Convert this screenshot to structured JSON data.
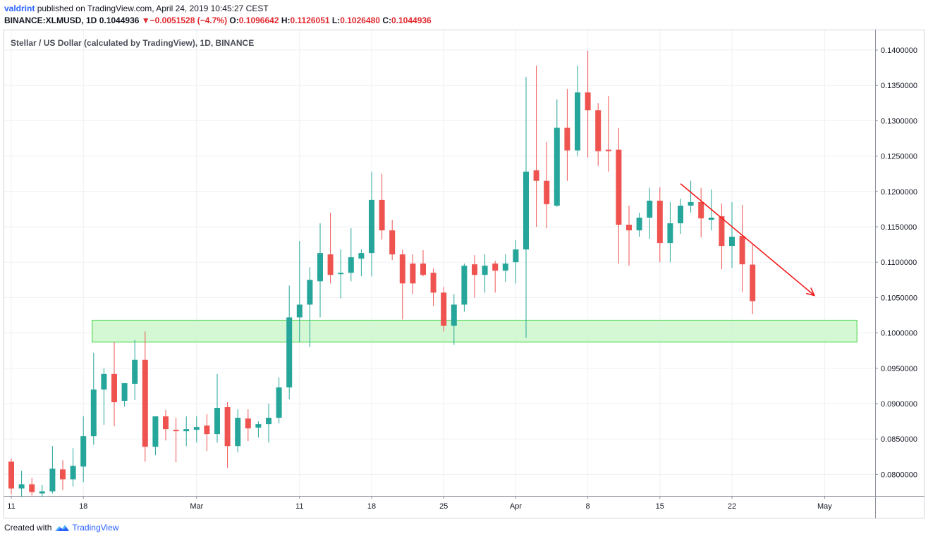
{
  "header": {
    "author": "valdrint",
    "published_text": "published on TradingView.com, April 24, 2019 10:45:27 CEST",
    "symbol_line": "BINANCE:XLMUSD, 1D",
    "last": "0.1044936",
    "change": "−0.0051528 (−4.7%)",
    "o_label": "O:",
    "o": "0.1096642",
    "h_label": "H:",
    "h": "0.1126051",
    "l_label": "L:",
    "l": "0.1026480",
    "c_label": "C:",
    "c": "0.1044936"
  },
  "footer": {
    "created_with": "Created with",
    "brand": "TradingView"
  },
  "colors": {
    "up": "#26a69a",
    "down": "#ef5350",
    "zone_fill": "#ccf7cc",
    "zone_stroke": "#39d339",
    "arrow": "#f21a1a",
    "grid": "#eef0f3"
  },
  "chart_data": {
    "type": "candlestick",
    "title": "Stellar / US Dollar (calculated by TradingView), 1D, BINANCE",
    "ylim": [
      0.0775,
      0.1414
    ],
    "y_ticks": [
      "0.1400000",
      "0.1350000",
      "0.1300000",
      "0.1250000",
      "0.1200000",
      "0.1150000",
      "0.1100000",
      "0.1050000",
      "0.1000000",
      "0.0950000",
      "0.0900000",
      "0.0850000",
      "0.0800000"
    ],
    "x_ticks": [
      {
        "label": "11",
        "day": 0
      },
      {
        "label": "18",
        "day": 7
      },
      {
        "label": "Mar",
        "day": 18
      },
      {
        "label": "11",
        "day": 28
      },
      {
        "label": "18",
        "day": 35
      },
      {
        "label": "25",
        "day": 42
      },
      {
        "label": "Apr",
        "day": 49
      },
      {
        "label": "8",
        "day": 56
      },
      {
        "label": "15",
        "day": 63
      },
      {
        "label": "22",
        "day": 70
      },
      {
        "label": "May",
        "day": 79
      }
    ],
    "candles": [
      {
        "date": "2019-02-11",
        "o": 0.0818,
        "h": 0.0822,
        "l": 0.0772,
        "c": 0.078
      },
      {
        "date": "2019-02-12",
        "o": 0.078,
        "h": 0.0805,
        "l": 0.0768,
        "c": 0.0786
      },
      {
        "date": "2019-02-13",
        "o": 0.0786,
        "h": 0.0795,
        "l": 0.077,
        "c": 0.0775
      },
      {
        "date": "2019-02-14",
        "o": 0.0773,
        "h": 0.0785,
        "l": 0.0768,
        "c": 0.0776
      },
      {
        "date": "2019-02-15",
        "o": 0.0776,
        "h": 0.084,
        "l": 0.0773,
        "c": 0.0808
      },
      {
        "date": "2019-02-16",
        "o": 0.0807,
        "h": 0.082,
        "l": 0.0778,
        "c": 0.0793
      },
      {
        "date": "2019-02-17",
        "o": 0.0793,
        "h": 0.0837,
        "l": 0.0783,
        "c": 0.0812
      },
      {
        "date": "2019-02-18",
        "o": 0.0811,
        "h": 0.0882,
        "l": 0.0789,
        "c": 0.0854
      },
      {
        "date": "2019-02-19",
        "o": 0.0854,
        "h": 0.0972,
        "l": 0.0842,
        "c": 0.092
      },
      {
        "date": "2019-02-20",
        "o": 0.092,
        "h": 0.095,
        "l": 0.087,
        "c": 0.0942
      },
      {
        "date": "2019-02-21",
        "o": 0.0942,
        "h": 0.0987,
        "l": 0.0868,
        "c": 0.0902
      },
      {
        "date": "2019-02-22",
        "o": 0.0904,
        "h": 0.0929,
        "l": 0.0896,
        "c": 0.0929
      },
      {
        "date": "2019-02-23",
        "o": 0.0928,
        "h": 0.099,
        "l": 0.0905,
        "c": 0.0962
      },
      {
        "date": "2019-02-24",
        "o": 0.0962,
        "h": 0.1002,
        "l": 0.0818,
        "c": 0.0839
      },
      {
        "date": "2019-02-25",
        "o": 0.0839,
        "h": 0.0882,
        "l": 0.0827,
        "c": 0.0882
      },
      {
        "date": "2019-02-26",
        "o": 0.0882,
        "h": 0.0891,
        "l": 0.0848,
        "c": 0.0864
      },
      {
        "date": "2019-02-27",
        "o": 0.0863,
        "h": 0.088,
        "l": 0.0817,
        "c": 0.0861
      },
      {
        "date": "2019-02-28",
        "o": 0.0861,
        "h": 0.0882,
        "l": 0.084,
        "c": 0.0864
      },
      {
        "date": "2019-03-01",
        "o": 0.0863,
        "h": 0.0882,
        "l": 0.0845,
        "c": 0.0867
      },
      {
        "date": "2019-03-02",
        "o": 0.0869,
        "h": 0.0885,
        "l": 0.0833,
        "c": 0.0857
      },
      {
        "date": "2019-03-03",
        "o": 0.0857,
        "h": 0.0942,
        "l": 0.0845,
        "c": 0.0894
      },
      {
        "date": "2019-03-04",
        "o": 0.0895,
        "h": 0.0902,
        "l": 0.0809,
        "c": 0.084
      },
      {
        "date": "2019-03-05",
        "o": 0.084,
        "h": 0.0892,
        "l": 0.0831,
        "c": 0.088
      },
      {
        "date": "2019-03-06",
        "o": 0.0879,
        "h": 0.0892,
        "l": 0.0847,
        "c": 0.0865
      },
      {
        "date": "2019-03-07",
        "o": 0.0866,
        "h": 0.0875,
        "l": 0.0852,
        "c": 0.0871
      },
      {
        "date": "2019-03-08",
        "o": 0.0871,
        "h": 0.09,
        "l": 0.0845,
        "c": 0.088
      },
      {
        "date": "2019-03-09",
        "o": 0.088,
        "h": 0.0937,
        "l": 0.0872,
        "c": 0.0923
      },
      {
        "date": "2019-03-10",
        "o": 0.0923,
        "h": 0.1067,
        "l": 0.0906,
        "c": 0.1022
      },
      {
        "date": "2019-03-11",
        "o": 0.1022,
        "h": 0.113,
        "l": 0.0987,
        "c": 0.104
      },
      {
        "date": "2019-03-12",
        "o": 0.104,
        "h": 0.1093,
        "l": 0.098,
        "c": 0.1075
      },
      {
        "date": "2019-03-13",
        "o": 0.1073,
        "h": 0.1155,
        "l": 0.1022,
        "c": 0.1113
      },
      {
        "date": "2019-03-14",
        "o": 0.1111,
        "h": 0.117,
        "l": 0.107,
        "c": 0.1082
      },
      {
        "date": "2019-03-15",
        "o": 0.1083,
        "h": 0.1118,
        "l": 0.1049,
        "c": 0.1085
      },
      {
        "date": "2019-03-16",
        "o": 0.1085,
        "h": 0.1148,
        "l": 0.1073,
        "c": 0.1107
      },
      {
        "date": "2019-03-17",
        "o": 0.1105,
        "h": 0.1118,
        "l": 0.108,
        "c": 0.1113
      },
      {
        "date": "2019-03-18",
        "o": 0.1113,
        "h": 0.1228,
        "l": 0.108,
        "c": 0.1188
      },
      {
        "date": "2019-03-19",
        "o": 0.1188,
        "h": 0.1225,
        "l": 0.1132,
        "c": 0.1145
      },
      {
        "date": "2019-03-20",
        "o": 0.1145,
        "h": 0.116,
        "l": 0.1103,
        "c": 0.1111
      },
      {
        "date": "2019-03-21",
        "o": 0.1111,
        "h": 0.1118,
        "l": 0.1019,
        "c": 0.107
      },
      {
        "date": "2019-03-22",
        "o": 0.1098,
        "h": 0.1111,
        "l": 0.1055,
        "c": 0.107
      },
      {
        "date": "2019-03-23",
        "o": 0.1098,
        "h": 0.1117,
        "l": 0.108,
        "c": 0.1082
      },
      {
        "date": "2019-03-24",
        "o": 0.1085,
        "h": 0.1091,
        "l": 0.1038,
        "c": 0.1057
      },
      {
        "date": "2019-03-25",
        "o": 0.1057,
        "h": 0.1065,
        "l": 0.1002,
        "c": 0.101
      },
      {
        "date": "2019-03-26",
        "o": 0.101,
        "h": 0.1055,
        "l": 0.0983,
        "c": 0.104
      },
      {
        "date": "2019-03-27",
        "o": 0.104,
        "h": 0.1098,
        "l": 0.103,
        "c": 0.1095
      },
      {
        "date": "2019-03-28",
        "o": 0.1097,
        "h": 0.111,
        "l": 0.105,
        "c": 0.1082
      },
      {
        "date": "2019-03-29",
        "o": 0.1082,
        "h": 0.1111,
        "l": 0.1057,
        "c": 0.1095
      },
      {
        "date": "2019-03-30",
        "o": 0.1098,
        "h": 0.1102,
        "l": 0.1057,
        "c": 0.1088
      },
      {
        "date": "2019-03-31",
        "o": 0.1088,
        "h": 0.1111,
        "l": 0.1072,
        "c": 0.1098
      },
      {
        "date": "2019-04-01",
        "o": 0.11,
        "h": 0.1131,
        "l": 0.107,
        "c": 0.1118
      },
      {
        "date": "2019-04-02",
        "o": 0.1118,
        "h": 0.1362,
        "l": 0.0993,
        "c": 0.1228
      },
      {
        "date": "2019-04-03",
        "o": 0.123,
        "h": 0.1378,
        "l": 0.115,
        "c": 0.1215
      },
      {
        "date": "2019-04-04",
        "o": 0.1215,
        "h": 0.127,
        "l": 0.1148,
        "c": 0.1182
      },
      {
        "date": "2019-04-05",
        "o": 0.118,
        "h": 0.133,
        "l": 0.1178,
        "c": 0.129
      },
      {
        "date": "2019-04-06",
        "o": 0.129,
        "h": 0.1345,
        "l": 0.1215,
        "c": 0.1258
      },
      {
        "date": "2019-04-07",
        "o": 0.1258,
        "h": 0.1378,
        "l": 0.125,
        "c": 0.134
      },
      {
        "date": "2019-04-08",
        "o": 0.134,
        "h": 0.1399,
        "l": 0.1248,
        "c": 0.1315
      },
      {
        "date": "2019-04-09",
        "o": 0.1315,
        "h": 0.1325,
        "l": 0.1236,
        "c": 0.1257
      },
      {
        "date": "2019-04-10",
        "o": 0.1259,
        "h": 0.1335,
        "l": 0.1228,
        "c": 0.1257
      },
      {
        "date": "2019-04-11",
        "o": 0.1259,
        "h": 0.129,
        "l": 0.1098,
        "c": 0.1153
      },
      {
        "date": "2019-04-12",
        "o": 0.1153,
        "h": 0.118,
        "l": 0.1095,
        "c": 0.1145
      },
      {
        "date": "2019-04-13",
        "o": 0.1145,
        "h": 0.117,
        "l": 0.1136,
        "c": 0.1163
      },
      {
        "date": "2019-04-14",
        "o": 0.1163,
        "h": 0.1205,
        "l": 0.1133,
        "c": 0.1187
      },
      {
        "date": "2019-04-15",
        "o": 0.1187,
        "h": 0.1206,
        "l": 0.11,
        "c": 0.1127
      },
      {
        "date": "2019-04-16",
        "o": 0.1127,
        "h": 0.1185,
        "l": 0.11,
        "c": 0.1155
      },
      {
        "date": "2019-04-17",
        "o": 0.1155,
        "h": 0.119,
        "l": 0.114,
        "c": 0.118
      },
      {
        "date": "2019-04-18",
        "o": 0.118,
        "h": 0.1215,
        "l": 0.117,
        "c": 0.1185
      },
      {
        "date": "2019-04-19",
        "o": 0.1185,
        "h": 0.1205,
        "l": 0.1135,
        "c": 0.1162
      },
      {
        "date": "2019-04-20",
        "o": 0.116,
        "h": 0.1203,
        "l": 0.1145,
        "c": 0.1163
      },
      {
        "date": "2019-04-21",
        "o": 0.1165,
        "h": 0.1183,
        "l": 0.109,
        "c": 0.1123
      },
      {
        "date": "2019-04-22",
        "o": 0.1123,
        "h": 0.1185,
        "l": 0.1092,
        "c": 0.1136
      },
      {
        "date": "2019-04-23",
        "o": 0.1137,
        "h": 0.1181,
        "l": 0.1058,
        "c": 0.1097
      },
      {
        "date": "2019-04-24",
        "o": 0.1096642,
        "h": 0.1126051,
        "l": 0.102648,
        "c": 0.1044936
      }
    ],
    "annotations": {
      "support_zone": {
        "y_low": 0.0987,
        "y_high": 0.1018,
        "x_start": "2019-02-19",
        "x_end": "2019-05-04"
      },
      "trend_arrow": {
        "from": {
          "date": "2019-04-17",
          "y": 0.1211
        },
        "to": {
          "date": "2019-04-30",
          "y": 0.1053
        }
      }
    }
  }
}
